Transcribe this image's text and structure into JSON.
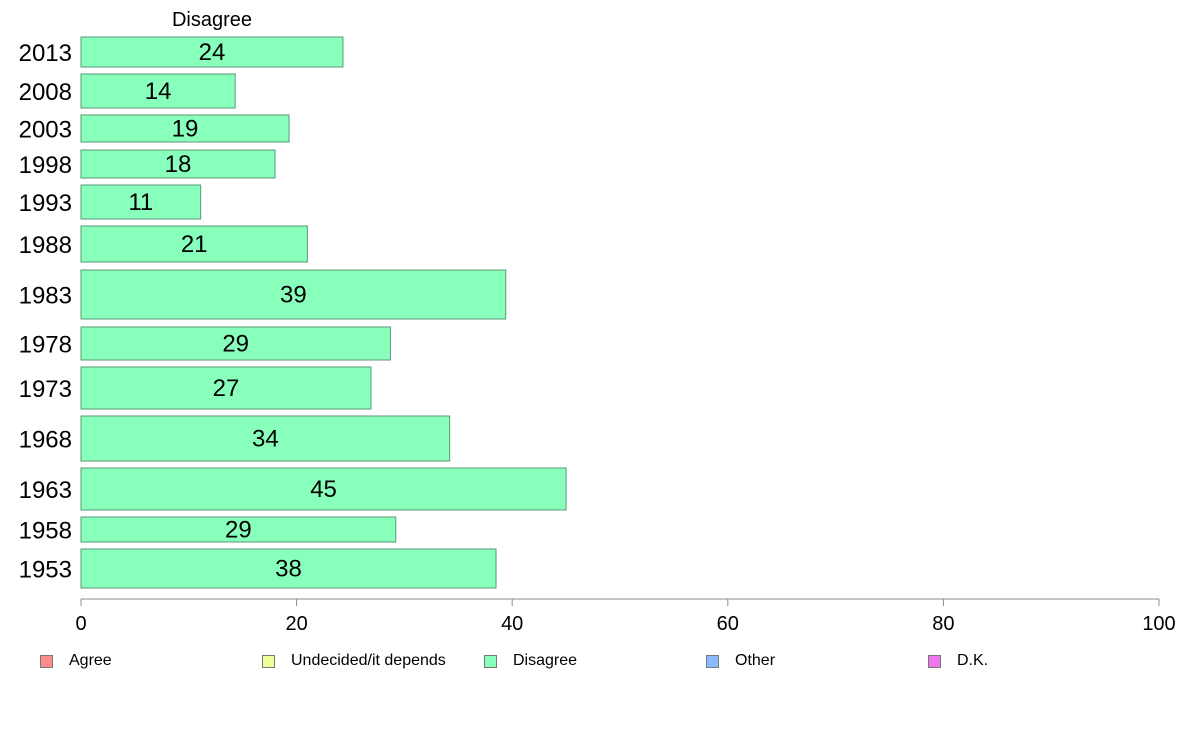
{
  "chart_data": {
    "type": "bar",
    "orientation": "horizontal",
    "panel_title": "Disagree",
    "categories": [
      "2013",
      "2008",
      "2003",
      "1998",
      "1993",
      "1988",
      "1983",
      "1978",
      "1973",
      "1968",
      "1963",
      "1958",
      "1953"
    ],
    "series": [
      {
        "name": "Disagree",
        "values": [
          24.3,
          14.3,
          19.3,
          18.0,
          11.1,
          21.0,
          39.4,
          28.7,
          26.9,
          34.2,
          45.0,
          29.2,
          38.5
        ]
      }
    ],
    "data_labels": [
      "24",
      "14",
      "19",
      "18",
      "11",
      "21",
      "39",
      "29",
      "27",
      "34",
      "45",
      "29",
      "38"
    ],
    "xlim": [
      0,
      100
    ],
    "xticks": [
      "0",
      "20",
      "40",
      "60",
      "80",
      "100"
    ],
    "bar_color": "#88ffbb",
    "bar_border": "#5a9a77",
    "legend_position": "bottom",
    "legend": [
      {
        "label": "Agree",
        "color": "#ff8c8c"
      },
      {
        "label": "Undecided/it depends",
        "color": "#eeff99"
      },
      {
        "label": "Disagree",
        "color": "#88ffbb"
      },
      {
        "label": "Other",
        "color": "#88bbff"
      },
      {
        "label": "D.K.",
        "color": "#ee77ee"
      }
    ]
  }
}
